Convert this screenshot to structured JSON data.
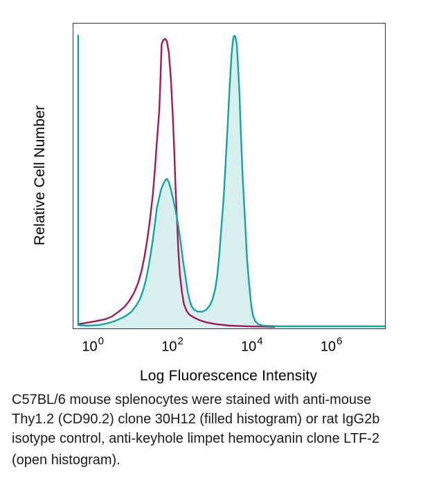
{
  "figure": {
    "y_axis_label": "Relative Cell Number",
    "x_axis_label": "Log Fluorescence Intensity",
    "caption": {
      "line1": "C57BL/6 mouse splenocytes were stained with anti-mouse",
      "line2": "Thy1.2 (CD90.2) clone 30H12 (filled histogram) or rat IgG2b",
      "line3": "isotype control, anti-keyhole limpet hemocyanin clone LTF-2",
      "line4": "(open histogram)."
    },
    "colors": {
      "open_histogram_line": "#A5175A",
      "filled_histogram_line": "#12A3A2",
      "filled_histogram_fill": "#D8F0ED",
      "plot_border": "#2F2F2F",
      "text": "#000000"
    }
  },
  "chart_data": {
    "type": "area",
    "title": "",
    "xlabel": "Log Fluorescence Intensity",
    "ylabel": "Relative Cell Number",
    "x_scale": "log10",
    "xlim_log10": [
      -0.5,
      7.34
    ],
    "ylim": [
      0,
      1
    ],
    "grid": false,
    "legend": "none (described in caption)",
    "x_ticks": [
      {
        "log10": 0,
        "base": "10",
        "exp": "0"
      },
      {
        "log10": 2,
        "base": "10",
        "exp": "2"
      },
      {
        "log10": 4,
        "base": "10",
        "exp": "4"
      },
      {
        "log10": 6,
        "base": "10",
        "exp": "6"
      }
    ],
    "series": [
      {
        "name": "rat IgG2b isotype control anti-KLH clone LTF-2 (open histogram)",
        "style": "open",
        "color": "#A5175A",
        "points": [
          [
            -0.38,
            0.014
          ],
          [
            -0.19,
            0.018
          ],
          [
            0.03,
            0.023
          ],
          [
            0.3,
            0.03
          ],
          [
            0.47,
            0.039
          ],
          [
            0.64,
            0.055
          ],
          [
            0.78,
            0.07
          ],
          [
            0.91,
            0.091
          ],
          [
            1.03,
            0.118
          ],
          [
            1.13,
            0.15
          ],
          [
            1.22,
            0.191
          ],
          [
            1.29,
            0.236
          ],
          [
            1.36,
            0.293
          ],
          [
            1.43,
            0.361
          ],
          [
            1.5,
            0.441
          ],
          [
            1.55,
            0.52
          ],
          [
            1.6,
            0.611
          ],
          [
            1.66,
            0.714
          ],
          [
            1.69,
            0.816
          ],
          [
            1.71,
            0.893
          ],
          [
            1.72,
            0.932
          ],
          [
            1.76,
            0.945
          ],
          [
            1.81,
            0.95
          ],
          [
            1.85,
            0.943
          ],
          [
            1.9,
            0.905
          ],
          [
            1.95,
            0.825
          ],
          [
            2.0,
            0.7
          ],
          [
            2.04,
            0.575
          ],
          [
            2.07,
            0.461
          ],
          [
            2.11,
            0.348
          ],
          [
            2.14,
            0.257
          ],
          [
            2.18,
            0.177
          ],
          [
            2.23,
            0.12
          ],
          [
            2.28,
            0.08
          ],
          [
            2.35,
            0.057
          ],
          [
            2.42,
            0.045
          ],
          [
            2.53,
            0.036
          ],
          [
            2.67,
            0.027
          ],
          [
            2.84,
            0.02
          ],
          [
            3.08,
            0.014
          ],
          [
            3.43,
            0.009
          ],
          [
            3.87,
            0.007
          ],
          [
            4.56,
            0.005
          ]
        ]
      },
      {
        "name": "anti-mouse Thy1.2 (CD90.2) clone 30H12 (filled histogram)",
        "style": "filled",
        "color": "#12A3A2",
        "fill": "#D8F0ED",
        "points": [
          [
            -0.38,
            0.961
          ],
          [
            -0.38,
            0.011
          ],
          [
            -0.14,
            0.009
          ],
          [
            0.12,
            0.011
          ],
          [
            0.33,
            0.016
          ],
          [
            0.52,
            0.023
          ],
          [
            0.68,
            0.032
          ],
          [
            0.82,
            0.041
          ],
          [
            0.96,
            0.055
          ],
          [
            1.08,
            0.075
          ],
          [
            1.17,
            0.095
          ],
          [
            1.25,
            0.123
          ],
          [
            1.32,
            0.157
          ],
          [
            1.39,
            0.202
          ],
          [
            1.45,
            0.248
          ],
          [
            1.5,
            0.293
          ],
          [
            1.55,
            0.343
          ],
          [
            1.6,
            0.395
          ],
          [
            1.66,
            0.43
          ],
          [
            1.71,
            0.457
          ],
          [
            1.76,
            0.473
          ],
          [
            1.81,
            0.486
          ],
          [
            1.85,
            0.491
          ],
          [
            1.9,
            0.48
          ],
          [
            1.95,
            0.457
          ],
          [
            2.0,
            0.43
          ],
          [
            2.06,
            0.395
          ],
          [
            2.11,
            0.359
          ],
          [
            2.16,
            0.318
          ],
          [
            2.21,
            0.273
          ],
          [
            2.26,
            0.22
          ],
          [
            2.32,
            0.17
          ],
          [
            2.37,
            0.125
          ],
          [
            2.42,
            0.095
          ],
          [
            2.47,
            0.073
          ],
          [
            2.54,
            0.061
          ],
          [
            2.63,
            0.055
          ],
          [
            2.74,
            0.055
          ],
          [
            2.84,
            0.061
          ],
          [
            2.93,
            0.075
          ],
          [
            3.0,
            0.095
          ],
          [
            3.07,
            0.13
          ],
          [
            3.12,
            0.175
          ],
          [
            3.17,
            0.241
          ],
          [
            3.22,
            0.325
          ],
          [
            3.28,
            0.427
          ],
          [
            3.33,
            0.541
          ],
          [
            3.38,
            0.664
          ],
          [
            3.43,
            0.791
          ],
          [
            3.48,
            0.898
          ],
          [
            3.52,
            0.95
          ],
          [
            3.54,
            0.959
          ],
          [
            3.57,
            0.959
          ],
          [
            3.61,
            0.934
          ],
          [
            3.64,
            0.87
          ],
          [
            3.68,
            0.768
          ],
          [
            3.71,
            0.655
          ],
          [
            3.76,
            0.495
          ],
          [
            3.82,
            0.348
          ],
          [
            3.87,
            0.227
          ],
          [
            3.92,
            0.148
          ],
          [
            3.97,
            0.08
          ],
          [
            4.02,
            0.041
          ],
          [
            4.08,
            0.023
          ],
          [
            4.15,
            0.014
          ],
          [
            4.27,
            0.009
          ],
          [
            4.65,
            0.007
          ],
          [
            7.34,
            0.007
          ]
        ]
      }
    ]
  }
}
